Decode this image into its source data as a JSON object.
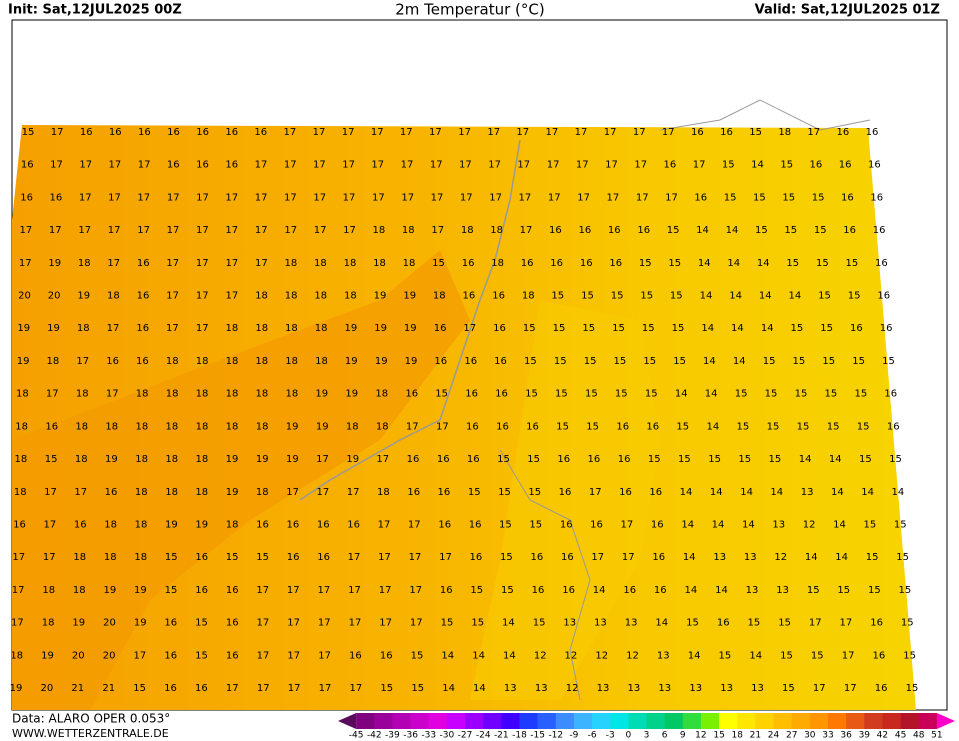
{
  "header": {
    "init": "Init: Sat,12JUL2025 00Z",
    "title": "2m Temperatur (°C)",
    "valid": "Valid: Sat,12JUL2025 01Z"
  },
  "footer": {
    "data": "Data: ALARO OPER 0.053°",
    "site": "WWW.WETTERZENTRALE.DE"
  },
  "legend": {
    "labels": [
      -45,
      -42,
      -39,
      -36,
      -33,
      -30,
      -27,
      -24,
      -21,
      -18,
      -15,
      -12,
      -9,
      -6,
      -3,
      0,
      3,
      6,
      9,
      12,
      15,
      18,
      21,
      24,
      27,
      30,
      33,
      36,
      39,
      42,
      45,
      48,
      51
    ],
    "colors": [
      "#5a0a5a",
      "#800080",
      "#9a009a",
      "#b400b4",
      "#cc00cc",
      "#e000e0",
      "#c800ff",
      "#9b00ff",
      "#7000ff",
      "#4000ff",
      "#1e3cff",
      "#2860ff",
      "#3c8cff",
      "#3cb4ff",
      "#28d2ff",
      "#00e6e6",
      "#00dcb4",
      "#00d28c",
      "#00c864",
      "#32dc3c",
      "#78f000",
      "#ffff00",
      "#ffe600",
      "#ffd200",
      "#ffbe00",
      "#ffaa00",
      "#ff9600",
      "#ff7800",
      "#e65a14",
      "#d23c1e",
      "#c8281e",
      "#b41428",
      "#c8005a",
      "#ff00c8"
    ]
  },
  "grid": [
    [
      15,
      17,
      16,
      16,
      16,
      16,
      16,
      16,
      16,
      17,
      17,
      17,
      17,
      17,
      17,
      17,
      17,
      17,
      17,
      17,
      17,
      17,
      17,
      16,
      16,
      15,
      18,
      17,
      16,
      16
    ],
    [
      16,
      17,
      17,
      17,
      17,
      16,
      16,
      16,
      17,
      17,
      17,
      17,
      17,
      17,
      17,
      17,
      17,
      17,
      17,
      17,
      17,
      17,
      16,
      17,
      15,
      14,
      15,
      16,
      16,
      16
    ],
    [
      16,
      16,
      17,
      17,
      17,
      17,
      17,
      17,
      17,
      17,
      17,
      17,
      17,
      17,
      17,
      17,
      17,
      17,
      17,
      17,
      17,
      17,
      17,
      16,
      15,
      15,
      15,
      15,
      16,
      16
    ],
    [
      17,
      17,
      17,
      17,
      17,
      17,
      17,
      17,
      17,
      17,
      17,
      17,
      18,
      18,
      17,
      18,
      18,
      17,
      16,
      16,
      16,
      16,
      15,
      14,
      14,
      15,
      15,
      15,
      16,
      16
    ],
    [
      17,
      19,
      18,
      17,
      16,
      17,
      17,
      17,
      17,
      18,
      18,
      18,
      18,
      18,
      15,
      16,
      18,
      16,
      16,
      16,
      16,
      15,
      15,
      14,
      14,
      14,
      15,
      15,
      15,
      16
    ],
    [
      20,
      20,
      19,
      18,
      16,
      17,
      17,
      17,
      18,
      18,
      18,
      18,
      19,
      19,
      18,
      16,
      16,
      18,
      15,
      15,
      15,
      15,
      15,
      14,
      14,
      14,
      14,
      15,
      15,
      16
    ],
    [
      19,
      19,
      18,
      17,
      16,
      17,
      17,
      18,
      18,
      18,
      18,
      19,
      19,
      19,
      16,
      17,
      16,
      15,
      15,
      15,
      15,
      15,
      15,
      14,
      14,
      14,
      15,
      15,
      16,
      16
    ],
    [
      19,
      18,
      17,
      16,
      16,
      18,
      18,
      18,
      18,
      18,
      18,
      19,
      19,
      19,
      16,
      16,
      16,
      15,
      15,
      15,
      15,
      15,
      15,
      14,
      14,
      15,
      15,
      15,
      15,
      15
    ],
    [
      18,
      17,
      18,
      17,
      18,
      18,
      18,
      18,
      18,
      18,
      19,
      19,
      18,
      16,
      15,
      16,
      16,
      15,
      15,
      15,
      15,
      15,
      14,
      14,
      15,
      15,
      15,
      15,
      15,
      16
    ],
    [
      18,
      16,
      18,
      18,
      18,
      18,
      18,
      18,
      18,
      19,
      19,
      18,
      18,
      17,
      17,
      16,
      16,
      16,
      15,
      15,
      16,
      16,
      15,
      14,
      15,
      15,
      15,
      15,
      15,
      16
    ],
    [
      18,
      15,
      18,
      19,
      18,
      18,
      18,
      19,
      19,
      19,
      17,
      19,
      17,
      16,
      16,
      16,
      15,
      15,
      16,
      16,
      16,
      15,
      15,
      15,
      15,
      15,
      14,
      14,
      15,
      15
    ],
    [
      18,
      17,
      17,
      16,
      18,
      18,
      18,
      19,
      18,
      17,
      17,
      17,
      18,
      16,
      16,
      15,
      15,
      15,
      16,
      17,
      16,
      16,
      14,
      14,
      14,
      14,
      13,
      14,
      14,
      14
    ],
    [
      16,
      17,
      16,
      18,
      18,
      19,
      19,
      18,
      16,
      16,
      16,
      16,
      17,
      17,
      16,
      16,
      15,
      15,
      16,
      16,
      17,
      16,
      14,
      14,
      14,
      13,
      12,
      14,
      15,
      15
    ],
    [
      17,
      17,
      18,
      18,
      18,
      15,
      16,
      15,
      15,
      16,
      16,
      17,
      17,
      17,
      17,
      16,
      15,
      16,
      16,
      17,
      17,
      16,
      14,
      13,
      13,
      12,
      14,
      14,
      15,
      15
    ],
    [
      17,
      18,
      18,
      19,
      19,
      15,
      16,
      16,
      17,
      17,
      17,
      17,
      17,
      17,
      16,
      15,
      15,
      16,
      16,
      14,
      16,
      16,
      14,
      14,
      13,
      13,
      15,
      15,
      15,
      15
    ],
    [
      17,
      18,
      19,
      20,
      19,
      16,
      15,
      16,
      17,
      17,
      17,
      17,
      17,
      17,
      15,
      15,
      14,
      15,
      13,
      13,
      13,
      14,
      15,
      16,
      15,
      15,
      17,
      17,
      16,
      15
    ],
    [
      18,
      19,
      20,
      20,
      17,
      16,
      15,
      16,
      17,
      17,
      17,
      16,
      16,
      15,
      14,
      14,
      14,
      12,
      12,
      12,
      12,
      13,
      14,
      15,
      14,
      15,
      15,
      17,
      16,
      15
    ],
    [
      19,
      20,
      21,
      21,
      15,
      16,
      16,
      17,
      17,
      17,
      17,
      17,
      15,
      15,
      14,
      14,
      13,
      13,
      12,
      13,
      13,
      13,
      13,
      13,
      13,
      15,
      17,
      17,
      16,
      15
    ]
  ]
}
